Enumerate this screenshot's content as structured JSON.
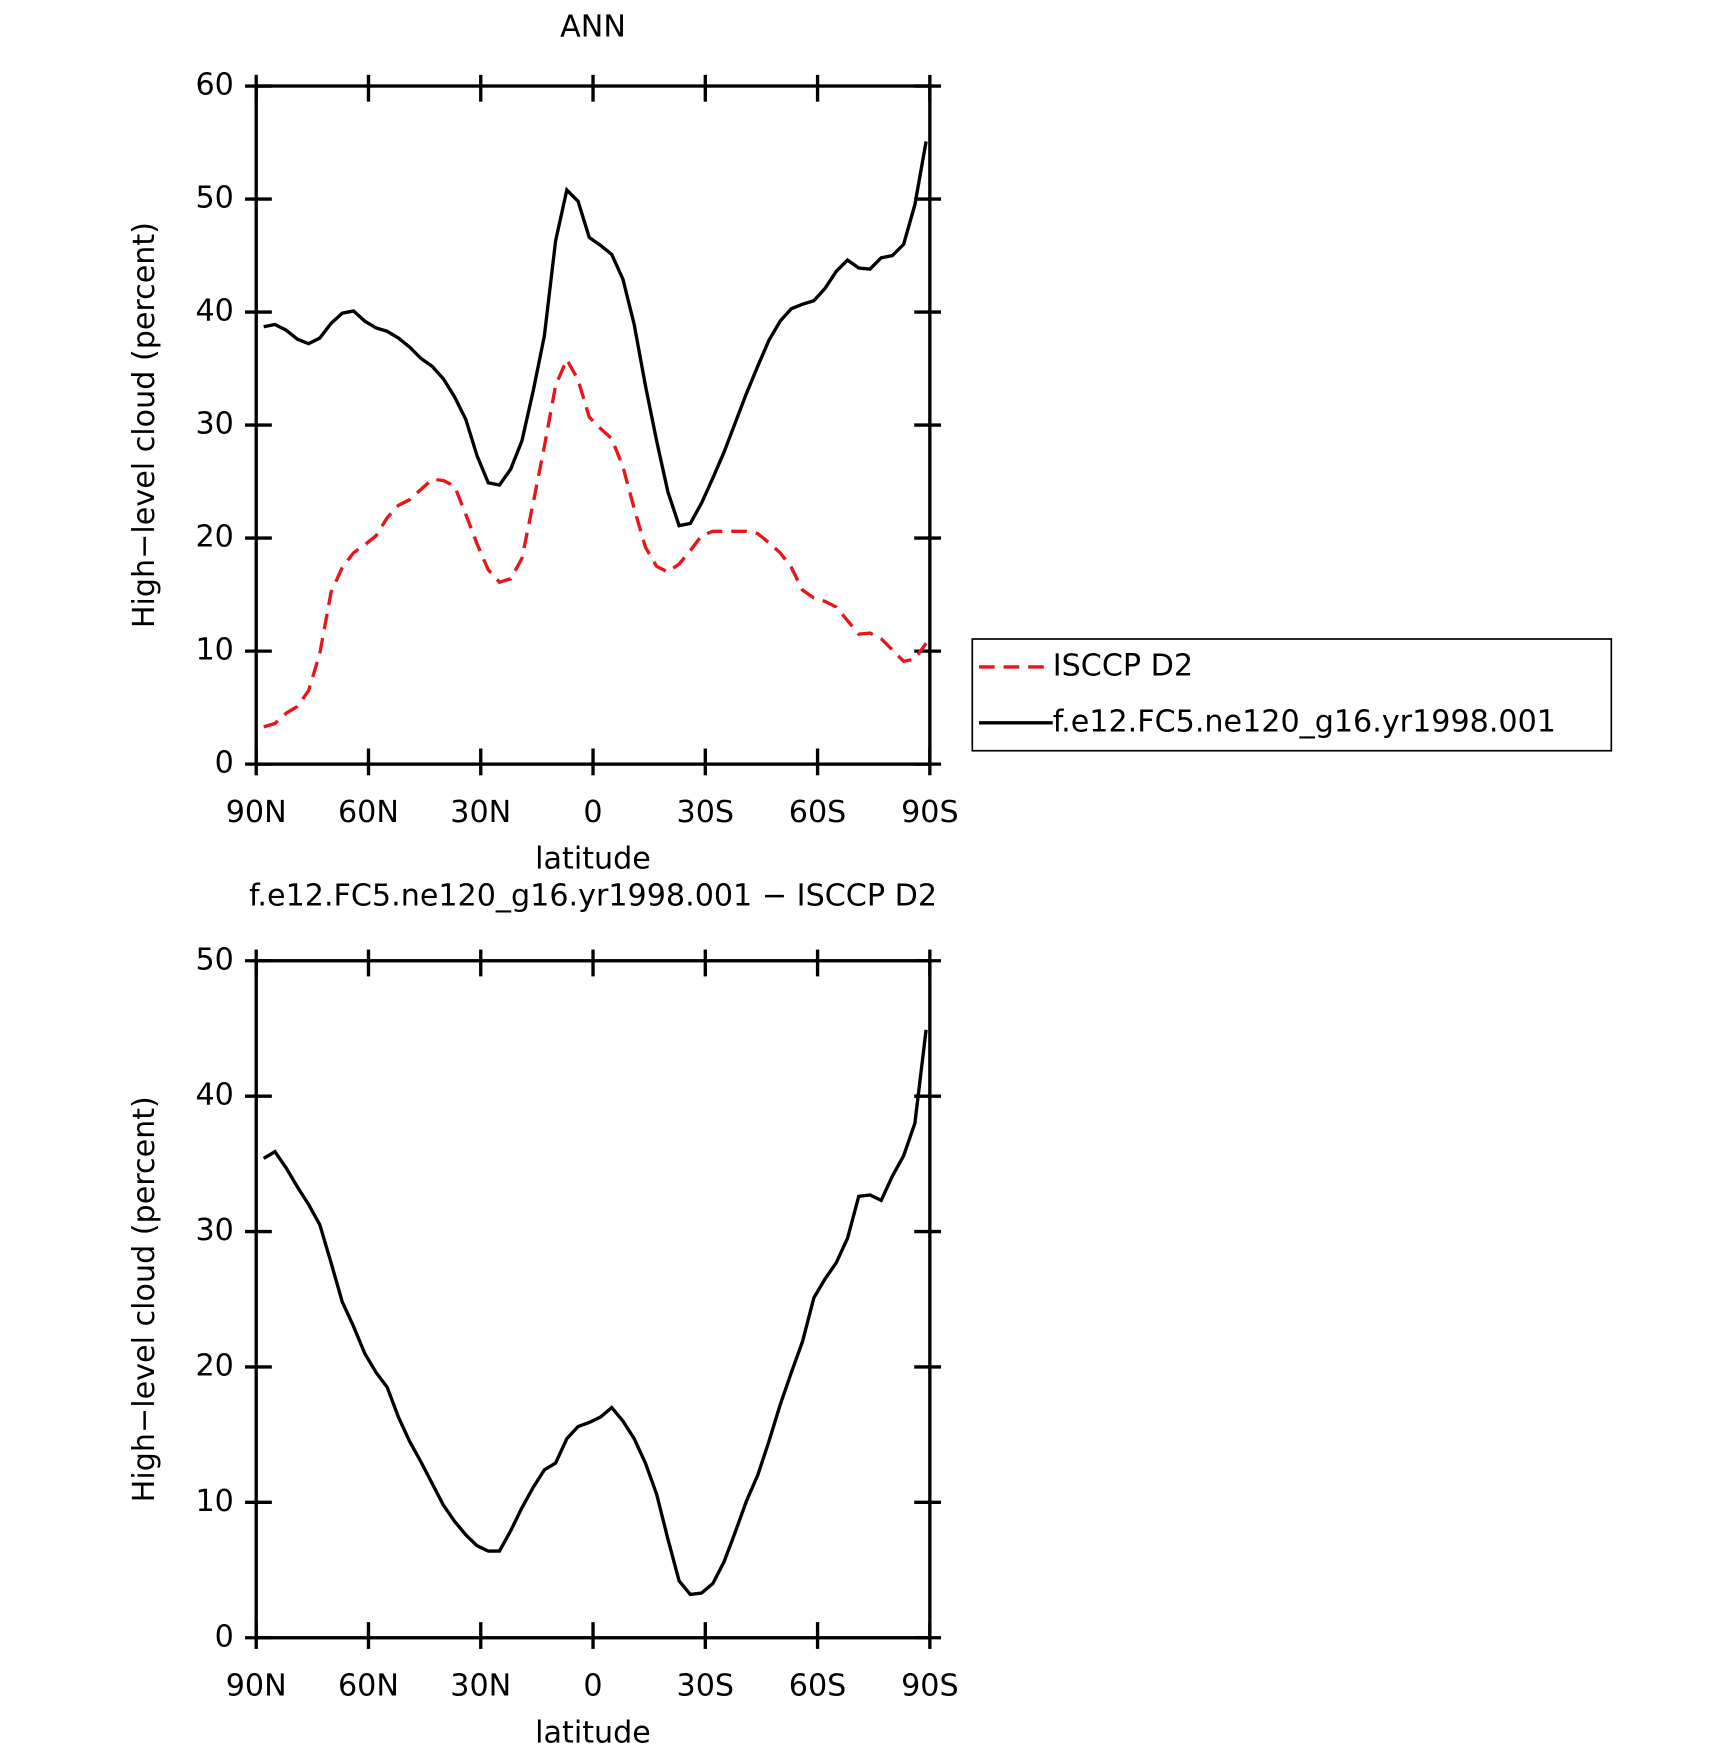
{
  "chart_data": [
    {
      "type": "line",
      "title": "ANN",
      "xlabel": "latitude",
      "ylabel": "High−level cloud (percent)",
      "x": [
        88,
        85,
        82,
        79,
        76,
        73,
        70,
        67,
        64,
        61,
        58,
        55,
        52,
        49,
        46,
        43,
        40,
        37,
        34,
        31,
        28,
        25,
        22,
        19,
        16,
        13,
        10,
        7,
        4,
        1,
        -2,
        -5,
        -8,
        -11,
        -14,
        -17,
        -20,
        -23,
        -26,
        -29,
        -32,
        -35,
        -38,
        -41,
        -44,
        -47,
        -50,
        -53,
        -56,
        -59,
        -62,
        -65,
        -68,
        -71,
        -74,
        -77,
        -80,
        -83,
        -86,
        -89
      ],
      "series": [
        {
          "name": "ISCCP D2",
          "color": "#e8151b",
          "dash": true,
          "values": [
            3.3,
            3.6,
            4.5,
            5.1,
            6.5,
            9.8,
            15.2,
            17.4,
            18.7,
            19.4,
            20.2,
            21.8,
            22.9,
            23.4,
            24.3,
            25.2,
            25.1,
            24.6,
            22.1,
            19.5,
            17.2,
            16.1,
            16.4,
            18.2,
            23.1,
            28.1,
            33.5,
            35.8,
            34.0,
            30.7,
            29.7,
            28.8,
            26.3,
            22.6,
            19.2,
            17.5,
            17.0,
            17.7,
            18.9,
            20.2,
            20.6,
            20.6,
            20.6,
            20.6,
            20.4,
            19.6,
            18.7,
            17.4,
            15.4,
            14.7,
            14.4,
            13.9,
            12.7,
            11.5,
            11.6,
            11.1,
            10.1,
            9.1,
            9.3,
            10.7
          ]
        },
        {
          "name": "f.e12.FC5.ne120_g16.yr1998.001",
          "color": "#000000",
          "dash": false,
          "values": [
            38.7,
            38.9,
            38.4,
            37.6,
            37.2,
            37.7,
            39.0,
            39.9,
            40.1,
            39.2,
            38.6,
            38.3,
            37.7,
            36.9,
            35.9,
            35.2,
            34.1,
            32.5,
            30.5,
            27.3,
            24.9,
            24.7,
            26.1,
            28.6,
            33.0,
            37.9,
            46.3,
            50.8,
            49.8,
            46.6,
            45.9,
            45.1,
            42.9,
            38.9,
            33.5,
            28.6,
            24.1,
            21.1,
            21.3,
            23.1,
            25.3,
            27.6,
            30.2,
            32.8,
            35.2,
            37.5,
            39.2,
            40.3,
            40.7,
            41.0,
            42.1,
            43.6,
            44.6,
            43.9,
            43.8,
            44.8,
            45.0,
            46.0,
            49.5,
            55.1
          ]
        }
      ],
      "xlim": [
        90,
        -90
      ],
      "xticks": [
        {
          "value": 90,
          "label": "90N"
        },
        {
          "value": 60,
          "label": "60N"
        },
        {
          "value": 30,
          "label": "30N"
        },
        0,
        {
          "value": -30,
          "label": "30S"
        },
        {
          "value": -60,
          "label": "60S"
        },
        {
          "value": -90,
          "label": "90S"
        }
      ],
      "ylim": [
        0,
        60
      ],
      "yticks": [
        0,
        10,
        20,
        30,
        40,
        50,
        60
      ],
      "legend": "right"
    },
    {
      "type": "line",
      "title": "f.e12.FC5.ne120_g16.yr1998.001 − ISCCP D2",
      "xlabel": "latitude",
      "ylabel": "High−level cloud (percent)",
      "x": [
        88,
        85,
        82,
        79,
        76,
        73,
        70,
        67,
        64,
        61,
        58,
        55,
        52,
        49,
        46,
        43,
        40,
        37,
        34,
        31,
        28,
        25,
        22,
        19,
        16,
        13,
        10,
        7,
        4,
        1,
        -2,
        -5,
        -8,
        -11,
        -14,
        -17,
        -20,
        -23,
        -26,
        -29,
        -32,
        -35,
        -38,
        -41,
        -44,
        -47,
        -50,
        -53,
        -56,
        -59,
        -62,
        -65,
        -68,
        -71,
        -74,
        -77,
        -80,
        -83,
        -86,
        -89
      ],
      "series": [
        {
          "color": "#000000",
          "dash": false,
          "values": [
            35.4,
            35.9,
            34.7,
            33.3,
            32.0,
            30.5,
            27.7,
            24.8,
            23.0,
            21.0,
            19.6,
            18.5,
            16.3,
            14.5,
            13.0,
            11.4,
            9.8,
            8.6,
            7.6,
            6.8,
            6.4,
            6.4,
            7.9,
            9.6,
            11.1,
            12.4,
            12.9,
            14.7,
            15.6,
            15.9,
            16.3,
            17.0,
            16.0,
            14.7,
            12.9,
            10.6,
            7.3,
            4.2,
            3.2,
            3.3,
            4.0,
            5.6,
            7.8,
            10.1,
            12.0,
            14.5,
            17.2,
            19.6,
            21.9,
            25.1,
            26.5,
            27.7,
            29.5,
            32.6,
            32.7,
            32.3,
            34.1,
            35.6,
            38.0,
            44.9
          ]
        }
      ],
      "xlim": [
        90,
        -90
      ],
      "xticks": [
        {
          "value": 90,
          "label": "90N"
        },
        {
          "value": 60,
          "label": "60N"
        },
        {
          "value": 30,
          "label": "30N"
        },
        0,
        {
          "value": -30,
          "label": "30S"
        },
        {
          "value": -60,
          "label": "60S"
        },
        {
          "value": -90,
          "label": "90S"
        }
      ],
      "ylim": [
        0,
        50
      ],
      "yticks": [
        0,
        10,
        20,
        30,
        40,
        50
      ]
    }
  ]
}
